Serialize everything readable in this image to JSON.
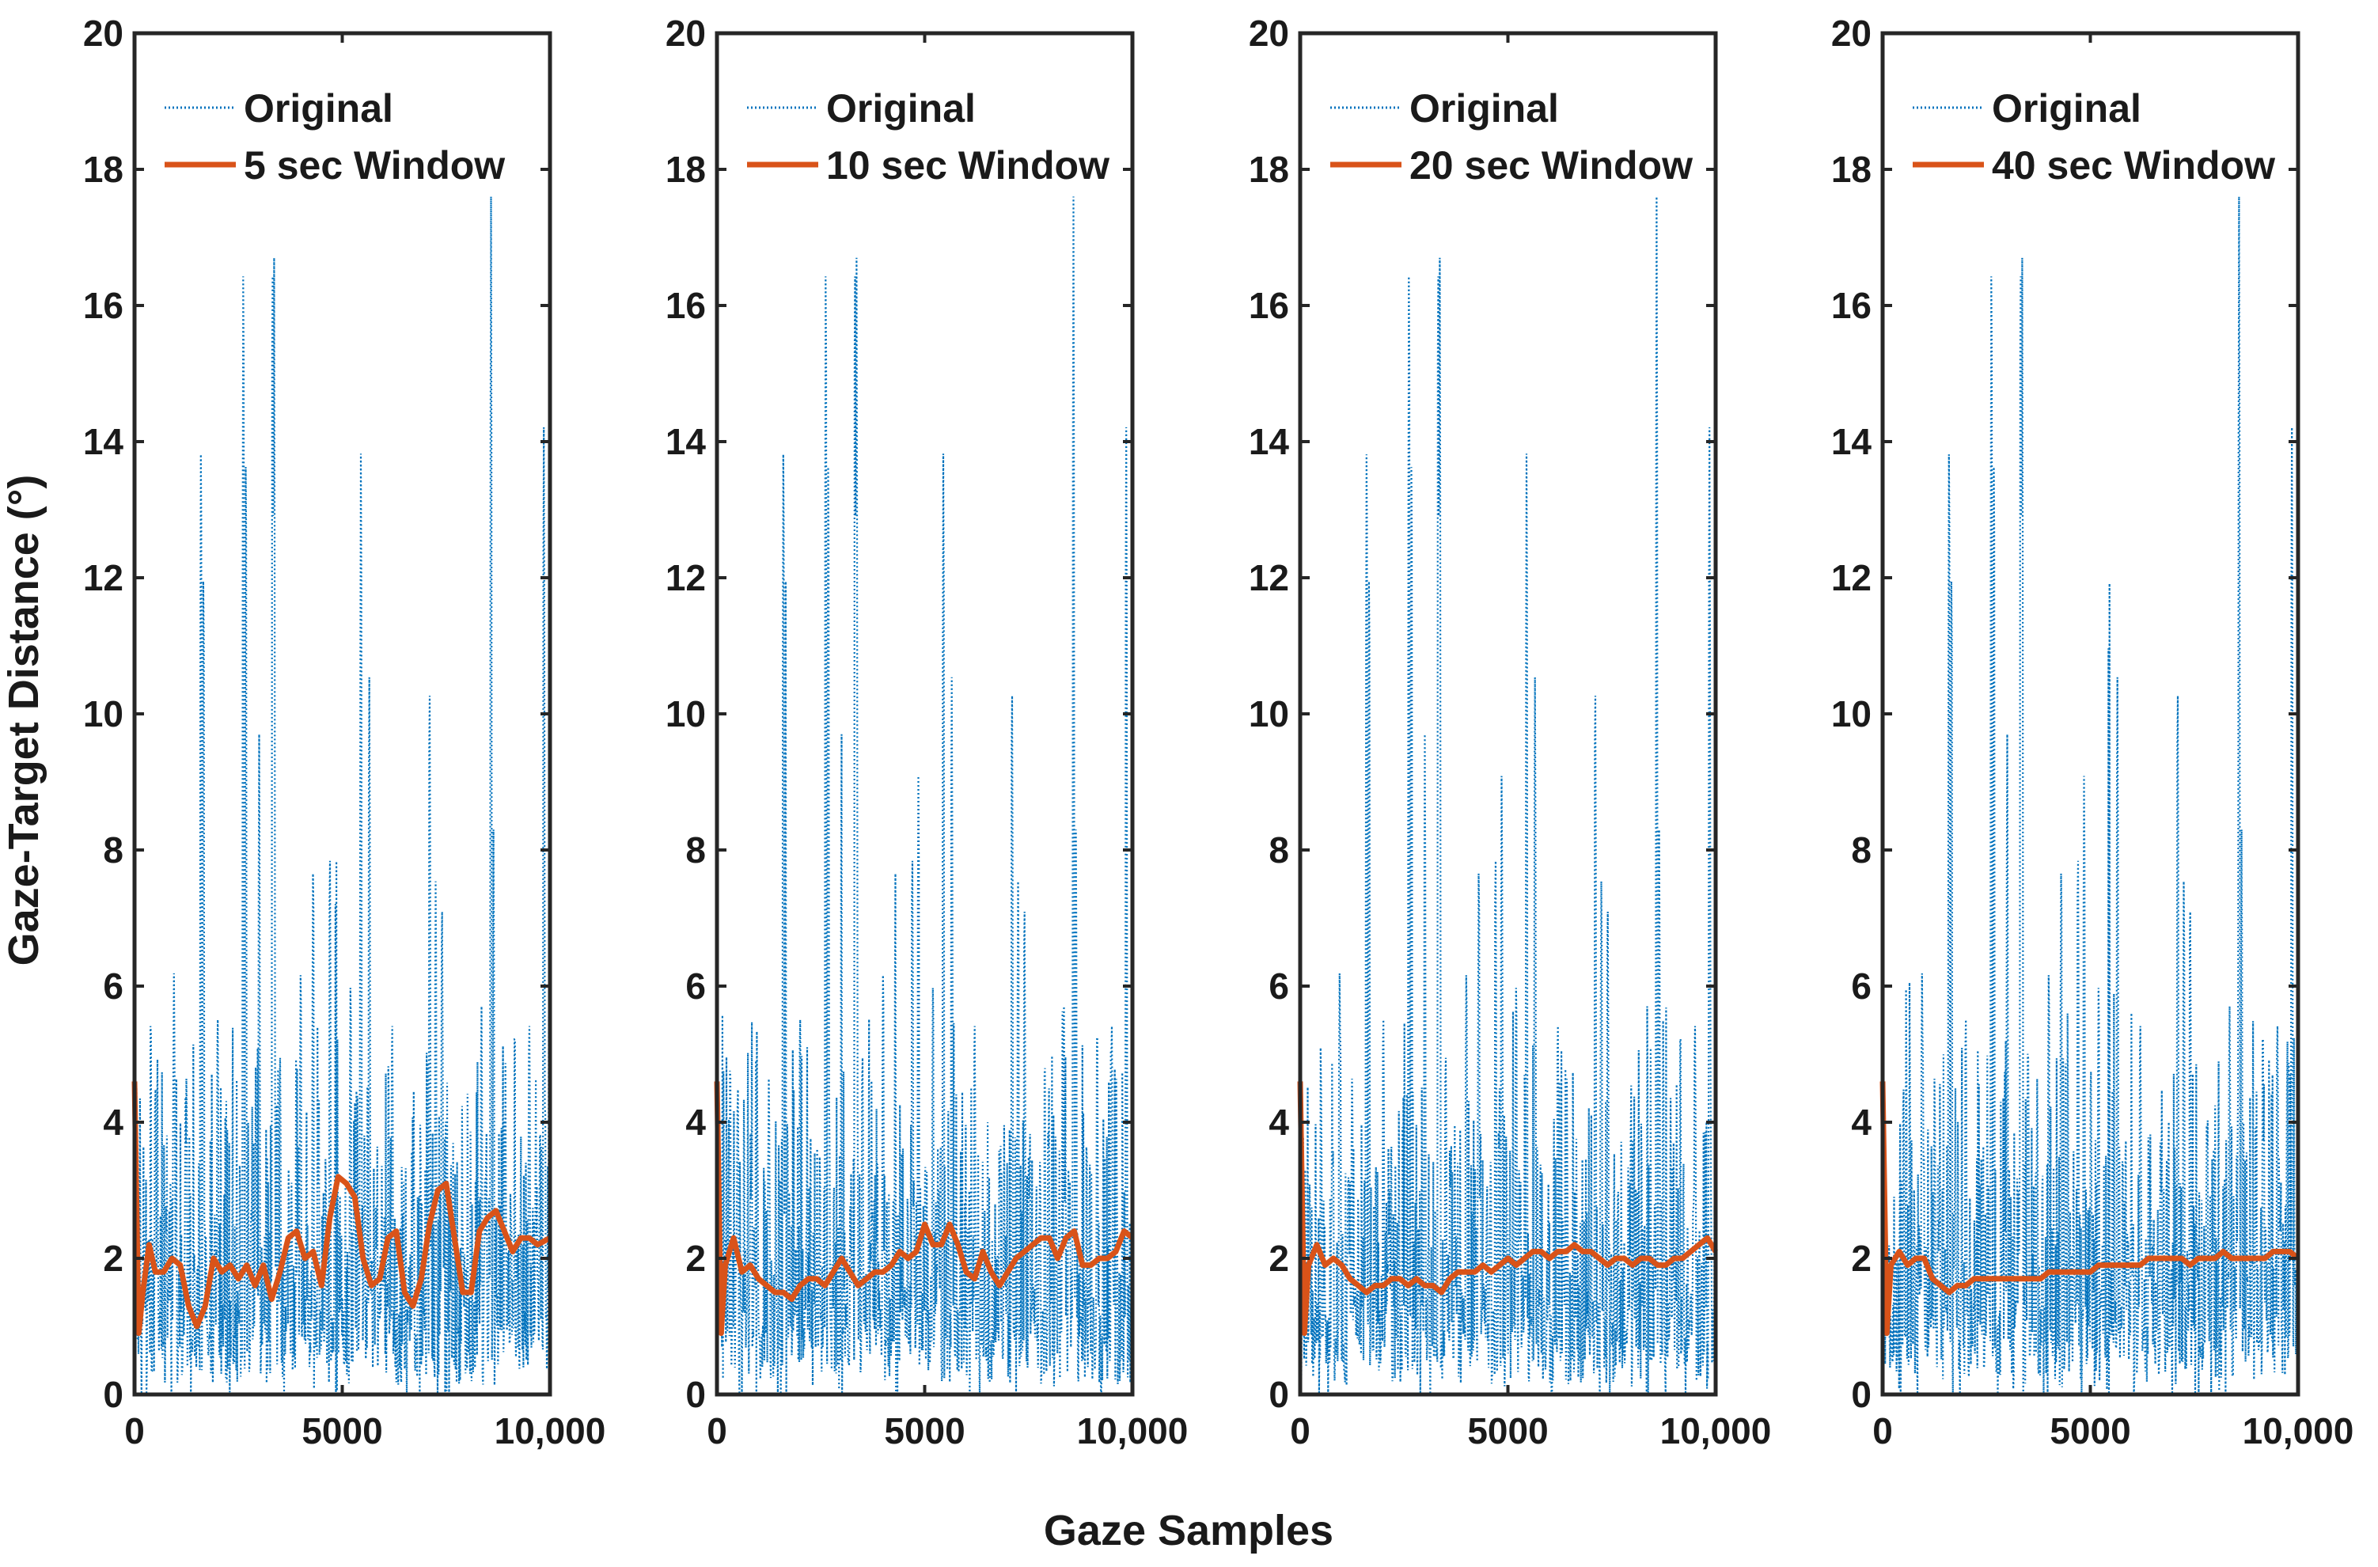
{
  "colors": {
    "original": "#0072BD",
    "smoothed": "#D95319",
    "axis": "#262626"
  },
  "labels": {
    "xlabel": "Gaze Samples",
    "ylabel": "Gaze-Target Distance (°)"
  },
  "chart_data": [
    {
      "type": "line",
      "panel": 1,
      "xlim": [
        0,
        10000
      ],
      "ylim": [
        0,
        20
      ],
      "xticks": [
        0,
        5000,
        10000
      ],
      "xtick_labels": [
        "0",
        "5000",
        "10,000"
      ],
      "yticks": [
        0,
        2,
        4,
        6,
        8,
        10,
        12,
        14,
        16,
        18,
        20
      ],
      "ytick_labels": [
        "0",
        "2",
        "4",
        "6",
        "8",
        "10",
        "12",
        "14",
        "16",
        "18",
        "20"
      ],
      "legend": [
        "Original",
        "5 sec Window"
      ],
      "legend_position": "top",
      "series": [
        {
          "name": "Original",
          "style": "dotted",
          "description": "raw gaze-target distance, spikes up to ~17.6",
          "y_range": [
            0,
            17.6
          ]
        },
        {
          "name": "5 sec Window",
          "style": "solid",
          "x": [
            0,
            100,
            200,
            350,
            500,
            700,
            900,
            1100,
            1300,
            1500,
            1700,
            1900,
            2100,
            2300,
            2500,
            2700,
            2900,
            3100,
            3300,
            3500,
            3700,
            3900,
            4100,
            4300,
            4500,
            4700,
            4900,
            5100,
            5300,
            5500,
            5700,
            5900,
            6100,
            6300,
            6500,
            6700,
            6900,
            7100,
            7300,
            7500,
            7700,
            7900,
            8100,
            8300,
            8500,
            8700,
            8900,
            9100,
            9300,
            9500,
            9700,
            10000
          ],
          "y": [
            4.6,
            0.9,
            1.5,
            2.2,
            1.8,
            1.8,
            2.0,
            1.9,
            1.3,
            1.0,
            1.3,
            2.0,
            1.8,
            1.9,
            1.7,
            1.9,
            1.6,
            1.9,
            1.4,
            1.8,
            2.3,
            2.4,
            2.0,
            2.1,
            1.6,
            2.6,
            3.2,
            3.1,
            2.9,
            2.0,
            1.6,
            1.7,
            2.3,
            2.4,
            1.5,
            1.3,
            1.7,
            2.5,
            3.0,
            3.1,
            2.3,
            1.5,
            1.5,
            2.4,
            2.6,
            2.7,
            2.4,
            2.1,
            2.3,
            2.3,
            2.2,
            2.3
          ]
        }
      ]
    },
    {
      "type": "line",
      "panel": 2,
      "xlim": [
        0,
        10000
      ],
      "ylim": [
        0,
        20
      ],
      "xticks": [
        0,
        5000,
        10000
      ],
      "xtick_labels": [
        "0",
        "5000",
        "10,000"
      ],
      "yticks": [
        0,
        2,
        4,
        6,
        8,
        10,
        12,
        14,
        16,
        18,
        20
      ],
      "ytick_labels": [
        "0",
        "2",
        "4",
        "6",
        "8",
        "10",
        "12",
        "14",
        "16",
        "18",
        "20"
      ],
      "legend": [
        "Original",
        "10 sec Window"
      ],
      "legend_position": "top",
      "series": [
        {
          "name": "Original",
          "style": "dotted",
          "description": "raw gaze-target distance, spikes up to ~17.6",
          "y_range": [
            0,
            17.6
          ]
        },
        {
          "name": "10 sec Window",
          "style": "solid",
          "x": [
            0,
            100,
            200,
            400,
            600,
            800,
            1000,
            1200,
            1400,
            1600,
            1800,
            2000,
            2200,
            2400,
            2600,
            2800,
            3000,
            3200,
            3400,
            3600,
            3800,
            4000,
            4200,
            4400,
            4600,
            4800,
            5000,
            5200,
            5400,
            5600,
            5800,
            6000,
            6200,
            6400,
            6600,
            6800,
            7000,
            7200,
            7400,
            7600,
            7800,
            8000,
            8200,
            8400,
            8600,
            8800,
            9000,
            9200,
            9400,
            9600,
            9800,
            10000
          ],
          "y": [
            4.6,
            0.9,
            1.9,
            2.3,
            1.8,
            1.9,
            1.7,
            1.6,
            1.5,
            1.5,
            1.4,
            1.6,
            1.7,
            1.7,
            1.6,
            1.8,
            2.0,
            1.8,
            1.6,
            1.7,
            1.8,
            1.8,
            1.9,
            2.1,
            2.0,
            2.1,
            2.5,
            2.2,
            2.2,
            2.5,
            2.2,
            1.8,
            1.7,
            2.1,
            1.8,
            1.6,
            1.8,
            2.0,
            2.1,
            2.2,
            2.3,
            2.3,
            2.0,
            2.3,
            2.4,
            1.9,
            1.9,
            2.0,
            2.0,
            2.1,
            2.4,
            2.3
          ]
        }
      ]
    },
    {
      "type": "line",
      "panel": 3,
      "xlim": [
        0,
        10000
      ],
      "ylim": [
        0,
        20
      ],
      "xticks": [
        0,
        5000,
        10000
      ],
      "xtick_labels": [
        "0",
        "5000",
        "10,000"
      ],
      "yticks": [
        0,
        2,
        4,
        6,
        8,
        10,
        12,
        14,
        16,
        18,
        20
      ],
      "ytick_labels": [
        "0",
        "2",
        "4",
        "6",
        "8",
        "10",
        "12",
        "14",
        "16",
        "18",
        "20"
      ],
      "legend": [
        "Original",
        "20 sec Window"
      ],
      "legend_position": "top",
      "series": [
        {
          "name": "Original",
          "style": "dotted",
          "description": "raw gaze-target distance, spikes up to ~17.6",
          "y_range": [
            0,
            17.6
          ]
        },
        {
          "name": "20 sec Window",
          "style": "solid",
          "x": [
            0,
            100,
            200,
            400,
            600,
            800,
            1000,
            1200,
            1400,
            1600,
            1800,
            2000,
            2200,
            2400,
            2600,
            2800,
            3000,
            3200,
            3400,
            3600,
            3800,
            4000,
            4200,
            4400,
            4600,
            4800,
            5000,
            5200,
            5400,
            5600,
            5800,
            6000,
            6200,
            6400,
            6600,
            6800,
            7000,
            7200,
            7400,
            7600,
            7800,
            8000,
            8200,
            8400,
            8600,
            8800,
            9000,
            9200,
            9400,
            9600,
            9800,
            10000
          ],
          "y": [
            4.6,
            0.9,
            1.9,
            2.2,
            1.9,
            2.0,
            1.9,
            1.7,
            1.6,
            1.5,
            1.6,
            1.6,
            1.7,
            1.7,
            1.6,
            1.7,
            1.6,
            1.6,
            1.5,
            1.7,
            1.8,
            1.8,
            1.8,
            1.9,
            1.8,
            1.9,
            2.0,
            1.9,
            2.0,
            2.1,
            2.1,
            2.0,
            2.1,
            2.1,
            2.2,
            2.1,
            2.1,
            2.0,
            1.9,
            2.0,
            2.0,
            1.9,
            2.0,
            2.0,
            1.9,
            1.9,
            2.0,
            2.0,
            2.1,
            2.2,
            2.3,
            2.1
          ]
        }
      ]
    },
    {
      "type": "line",
      "panel": 4,
      "xlim": [
        0,
        10000
      ],
      "ylim": [
        0,
        20
      ],
      "xticks": [
        0,
        5000,
        10000
      ],
      "xtick_labels": [
        "0",
        "5000",
        "10,000"
      ],
      "yticks": [
        0,
        2,
        4,
        6,
        8,
        10,
        12,
        14,
        16,
        18,
        20
      ],
      "ytick_labels": [
        "0",
        "2",
        "4",
        "6",
        "8",
        "10",
        "12",
        "14",
        "16",
        "18",
        "20"
      ],
      "legend": [
        "Original",
        "40 sec Window"
      ],
      "legend_position": "top",
      "series": [
        {
          "name": "Original",
          "style": "dotted",
          "description": "raw gaze-target distance, spikes up to ~17.6",
          "y_range": [
            0,
            17.6
          ]
        },
        {
          "name": "40 sec Window",
          "style": "solid",
          "x": [
            0,
            100,
            200,
            400,
            600,
            800,
            1000,
            1200,
            1400,
            1600,
            1800,
            2000,
            2200,
            2400,
            2600,
            2800,
            3000,
            3200,
            3400,
            3600,
            3800,
            4000,
            4200,
            4400,
            4600,
            4800,
            5000,
            5200,
            5400,
            5600,
            5800,
            6000,
            6200,
            6400,
            6600,
            6800,
            7000,
            7200,
            7400,
            7600,
            7800,
            8000,
            8200,
            8400,
            8600,
            8800,
            9000,
            9200,
            9400,
            9600,
            9800,
            10000
          ],
          "y": [
            4.6,
            0.9,
            1.9,
            2.1,
            1.9,
            2.0,
            2.0,
            1.7,
            1.6,
            1.5,
            1.6,
            1.6,
            1.7,
            1.7,
            1.7,
            1.7,
            1.7,
            1.7,
            1.7,
            1.7,
            1.7,
            1.8,
            1.8,
            1.8,
            1.8,
            1.8,
            1.8,
            1.9,
            1.9,
            1.9,
            1.9,
            1.9,
            1.9,
            2.0,
            2.0,
            2.0,
            2.0,
            2.0,
            1.9,
            2.0,
            2.0,
            2.0,
            2.1,
            2.0,
            2.0,
            2.0,
            2.0,
            2.0,
            2.1,
            2.1,
            2.1,
            2.0
          ]
        }
      ]
    }
  ]
}
